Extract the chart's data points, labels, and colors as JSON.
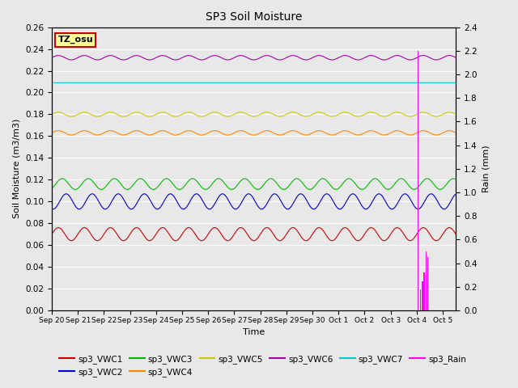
{
  "title": "SP3 Soil Moisture",
  "xlabel": "Time",
  "ylabel_left": "Soil Moisture (m3/m3)",
  "ylabel_right": "Rain (mm)",
  "ylim_left": [
    0.0,
    0.26
  ],
  "ylim_right": [
    0.0,
    2.4
  ],
  "x_tick_labels": [
    "Sep 20",
    "Sep 21",
    "Sep 22",
    "Sep 23",
    "Sep 24",
    "Sep 25",
    "Sep 26",
    "Sep 27",
    "Sep 28",
    "Sep 29",
    "Sep 30",
    "Oct 1",
    "Oct 2",
    "Oct 3",
    "Oct 4",
    "Oct 5"
  ],
  "background_color": "#e8e8e8",
  "grid_color": "#ffffff",
  "figure_bg": "#e8e8e8",
  "series": [
    {
      "name": "sp3_VWC1",
      "color": "#cc0000",
      "base": 0.07,
      "amp": 0.006,
      "period": 1.0,
      "phase": 0.0
    },
    {
      "name": "sp3_VWC2",
      "color": "#0000cc",
      "base": 0.1,
      "amp": 0.007,
      "period": 1.0,
      "phase": 0.3
    },
    {
      "name": "sp3_VWC3",
      "color": "#00bb00",
      "base": 0.116,
      "amp": 0.005,
      "period": 1.0,
      "phase": 0.15
    },
    {
      "name": "sp3_VWC4",
      "color": "#ff8800",
      "base": 0.163,
      "amp": 0.002,
      "period": 1.0,
      "phase": 0.0
    },
    {
      "name": "sp3_VWC5",
      "color": "#cccc00",
      "base": 0.18,
      "amp": 0.002,
      "period": 1.0,
      "phase": 0.0
    },
    {
      "name": "sp3_VWC6",
      "color": "#aa00aa",
      "base": 0.232,
      "amp": 0.002,
      "period": 1.0,
      "phase": 0.0
    },
    {
      "name": "sp3_VWC7",
      "color": "#00cccc",
      "base": 0.209,
      "amp": 0.0,
      "period": 1.0,
      "phase": 0.0
    }
  ],
  "rain_color": "#ff00ff",
  "rain_events": [
    {
      "day": 14.05,
      "value": 2.2
    },
    {
      "day": 14.15,
      "value": 0.18
    },
    {
      "day": 14.22,
      "value": 0.25
    },
    {
      "day": 14.28,
      "value": 0.32
    },
    {
      "day": 14.35,
      "value": 0.5
    },
    {
      "day": 14.42,
      "value": 0.45
    }
  ],
  "watermark_text": "TZ_osu",
  "watermark_bg": "#ffff99",
  "watermark_border": "#cc0000",
  "legend_entries": [
    {
      "label": "sp3_VWC1",
      "color": "#cc0000",
      "type": "line"
    },
    {
      "label": "sp3_VWC2",
      "color": "#0000cc",
      "type": "line"
    },
    {
      "label": "sp3_VWC3",
      "color": "#00bb00",
      "type": "line"
    },
    {
      "label": "sp3_VWC4",
      "color": "#ff8800",
      "type": "line"
    },
    {
      "label": "sp3_VWC5",
      "color": "#cccc00",
      "type": "line"
    },
    {
      "label": "sp3_VWC6",
      "color": "#aa00aa",
      "type": "line"
    },
    {
      "label": "sp3_VWC7",
      "color": "#00cccc",
      "type": "line"
    },
    {
      "label": "sp3_Rain",
      "color": "#ff00ff",
      "type": "line"
    }
  ]
}
